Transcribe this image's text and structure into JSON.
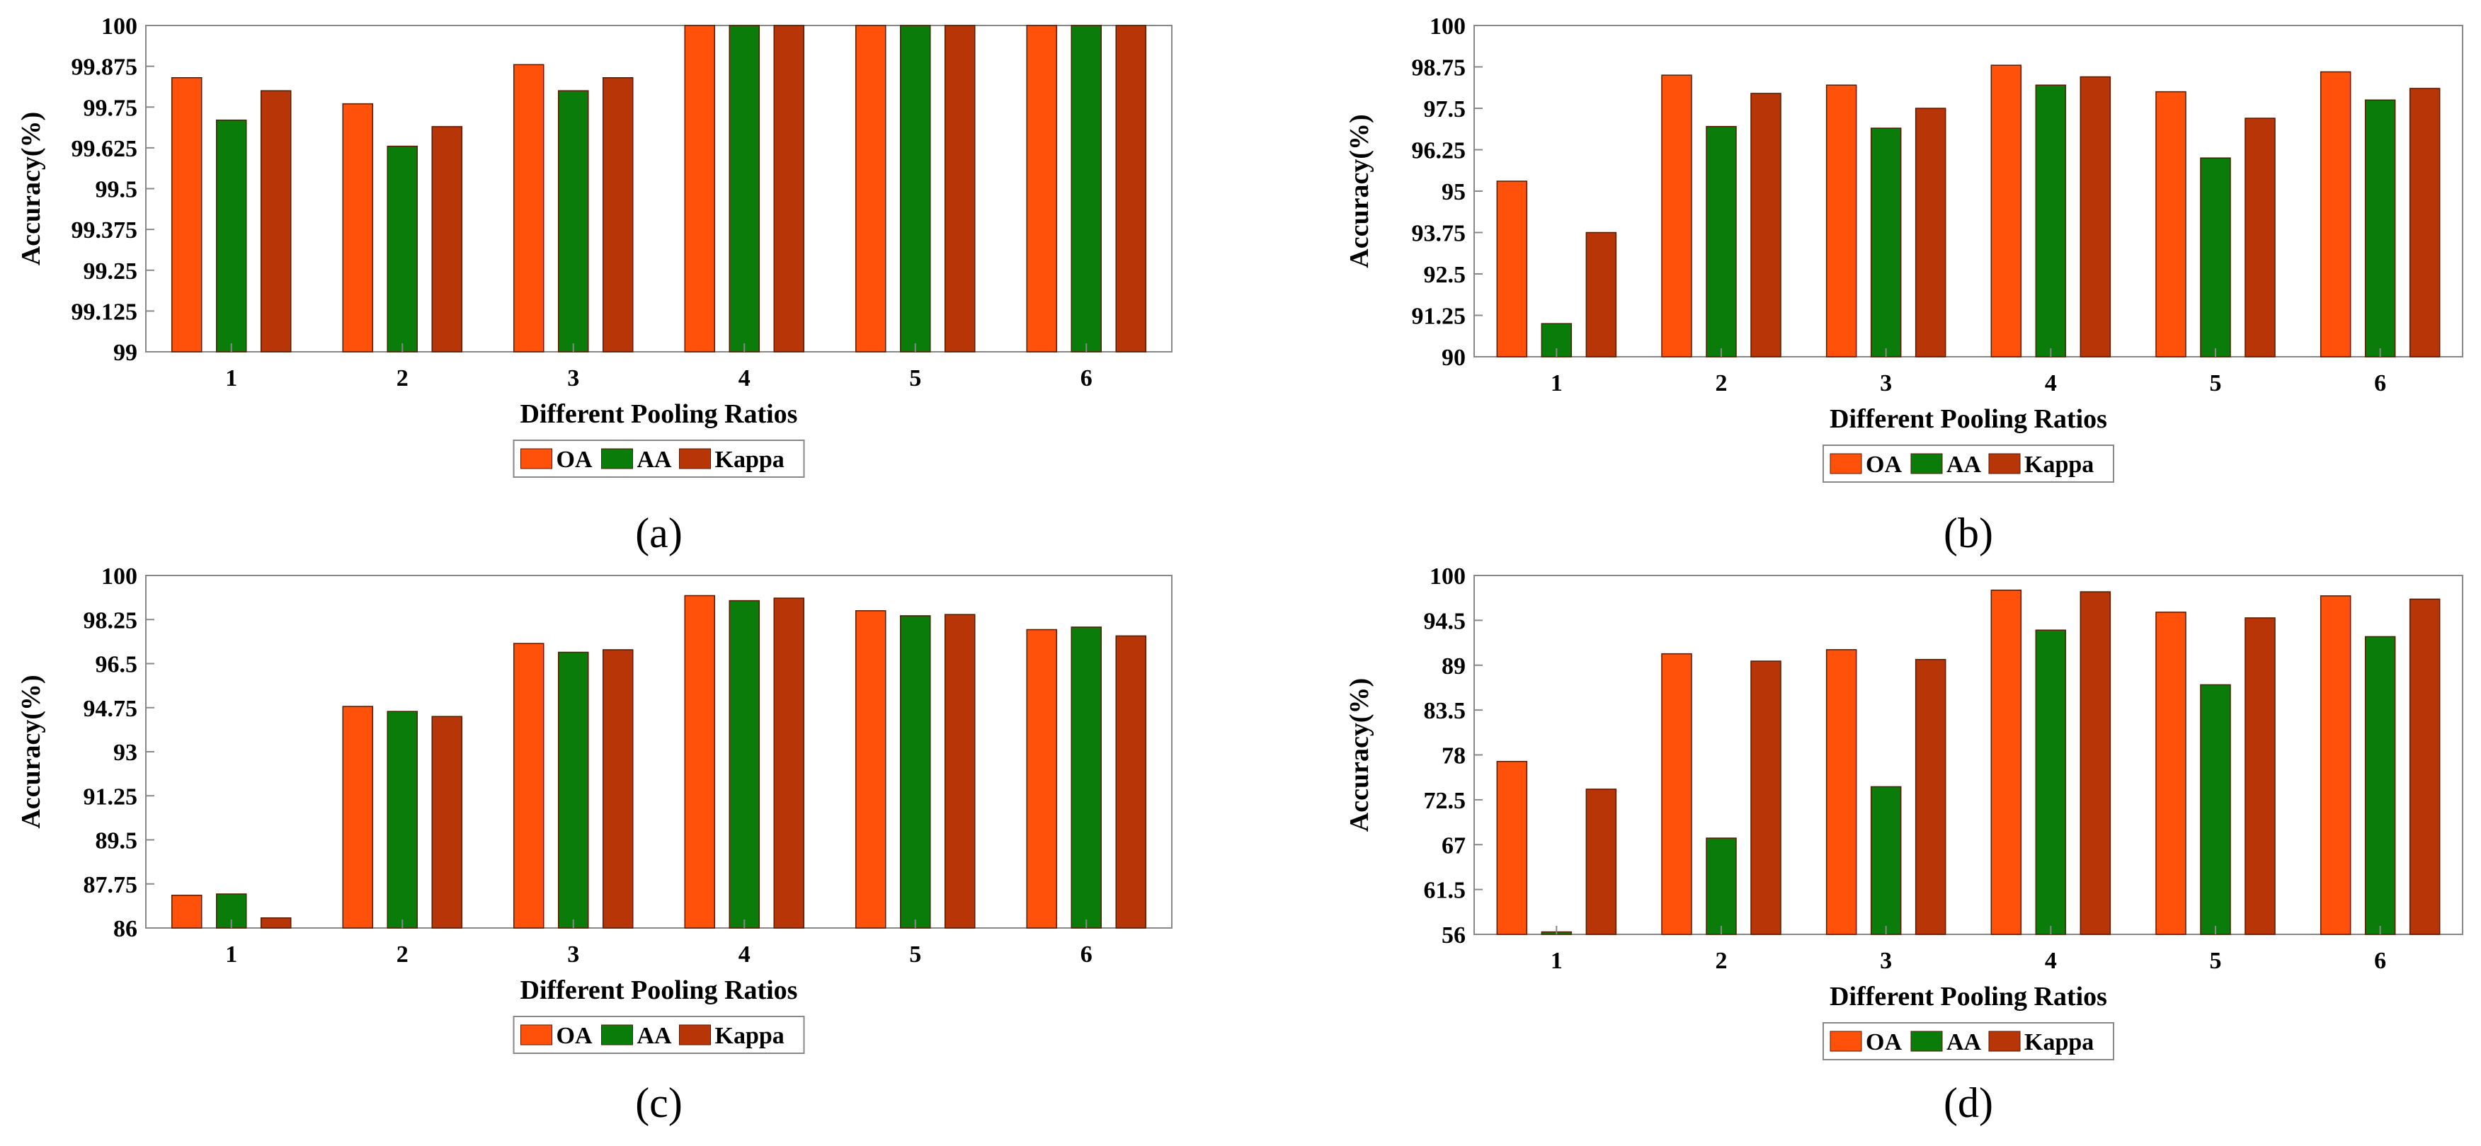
{
  "chart_data": [
    {
      "type": "bar",
      "caption": "(a)",
      "categories": [
        "1",
        "2",
        "3",
        "4",
        "5",
        "6"
      ],
      "xlabel": "Different Pooling Ratios",
      "ylabel": "Accuracy(%)",
      "ylim": [
        99,
        100
      ],
      "yticks": [
        "99",
        "99.125",
        "99.25",
        "99.375",
        "99.5",
        "99.625",
        "99.75",
        "99.875",
        "100"
      ],
      "legend_position": "bottom-center",
      "series": [
        {
          "name": "OA",
          "values": [
            99.84,
            99.76,
            99.88,
            100,
            100,
            100
          ]
        },
        {
          "name": "AA",
          "values": [
            99.71,
            99.63,
            99.8,
            100,
            100,
            100
          ]
        },
        {
          "name": "Kappa",
          "values": [
            99.8,
            99.69,
            99.84,
            100,
            100,
            100
          ]
        }
      ]
    },
    {
      "type": "bar",
      "caption": "(b)",
      "categories": [
        "1",
        "2",
        "3",
        "4",
        "5",
        "6"
      ],
      "xlabel": "Different Pooling Ratios",
      "ylabel": "Accuracy(%)",
      "ylim": [
        90,
        100
      ],
      "yticks": [
        "90",
        "91.25",
        "92.5",
        "93.75",
        "95",
        "96.25",
        "97.5",
        "98.75",
        "100"
      ],
      "legend_position": "bottom-center",
      "series": [
        {
          "name": "OA",
          "values": [
            95.3,
            98.5,
            98.2,
            98.8,
            98.0,
            98.6
          ]
        },
        {
          "name": "AA",
          "values": [
            91.0,
            96.95,
            96.9,
            98.2,
            96.0,
            97.75
          ]
        },
        {
          "name": "Kappa",
          "values": [
            93.75,
            97.95,
            97.5,
            98.45,
            97.2,
            98.1
          ]
        }
      ]
    },
    {
      "type": "bar",
      "caption": "(c)",
      "categories": [
        "1",
        "2",
        "3",
        "4",
        "5",
        "6"
      ],
      "xlabel": "Different Pooling Ratios",
      "ylabel": "Accuracy(%)",
      "ylim": [
        86,
        100
      ],
      "yticks": [
        "86",
        "87.75",
        "89.5",
        "91.25",
        "93",
        "94.75",
        "96.5",
        "98.25",
        "100"
      ],
      "legend_position": "bottom-center",
      "series": [
        {
          "name": "OA",
          "values": [
            87.3,
            94.8,
            97.3,
            99.2,
            98.6,
            97.85
          ]
        },
        {
          "name": "AA",
          "values": [
            87.35,
            94.6,
            96.95,
            99.0,
            98.4,
            97.95
          ]
        },
        {
          "name": "Kappa",
          "values": [
            86.4,
            94.4,
            97.05,
            99.1,
            98.45,
            97.6
          ]
        }
      ]
    },
    {
      "type": "bar",
      "caption": "(d)",
      "categories": [
        "1",
        "2",
        "3",
        "4",
        "5",
        "6"
      ],
      "xlabel": "Different Pooling Ratios",
      "ylabel": "Accuracy(%)",
      "ylim": [
        56,
        100
      ],
      "yticks": [
        "56",
        "61.5",
        "67",
        "72.5",
        "78",
        "83.5",
        "89",
        "94.5",
        "100"
      ],
      "legend_position": "bottom-center",
      "series": [
        {
          "name": "OA",
          "values": [
            77.2,
            90.4,
            90.9,
            98.2,
            95.5,
            97.5
          ]
        },
        {
          "name": "AA",
          "values": [
            56.3,
            67.8,
            74.1,
            93.3,
            86.6,
            92.5
          ]
        },
        {
          "name": "Kappa",
          "values": [
            73.8,
            89.5,
            89.7,
            98.0,
            94.8,
            97.1
          ]
        }
      ]
    }
  ],
  "colors": {
    "OA": "#FF5109",
    "AA": "#0A7C0A",
    "Kappa": "#B83508"
  }
}
